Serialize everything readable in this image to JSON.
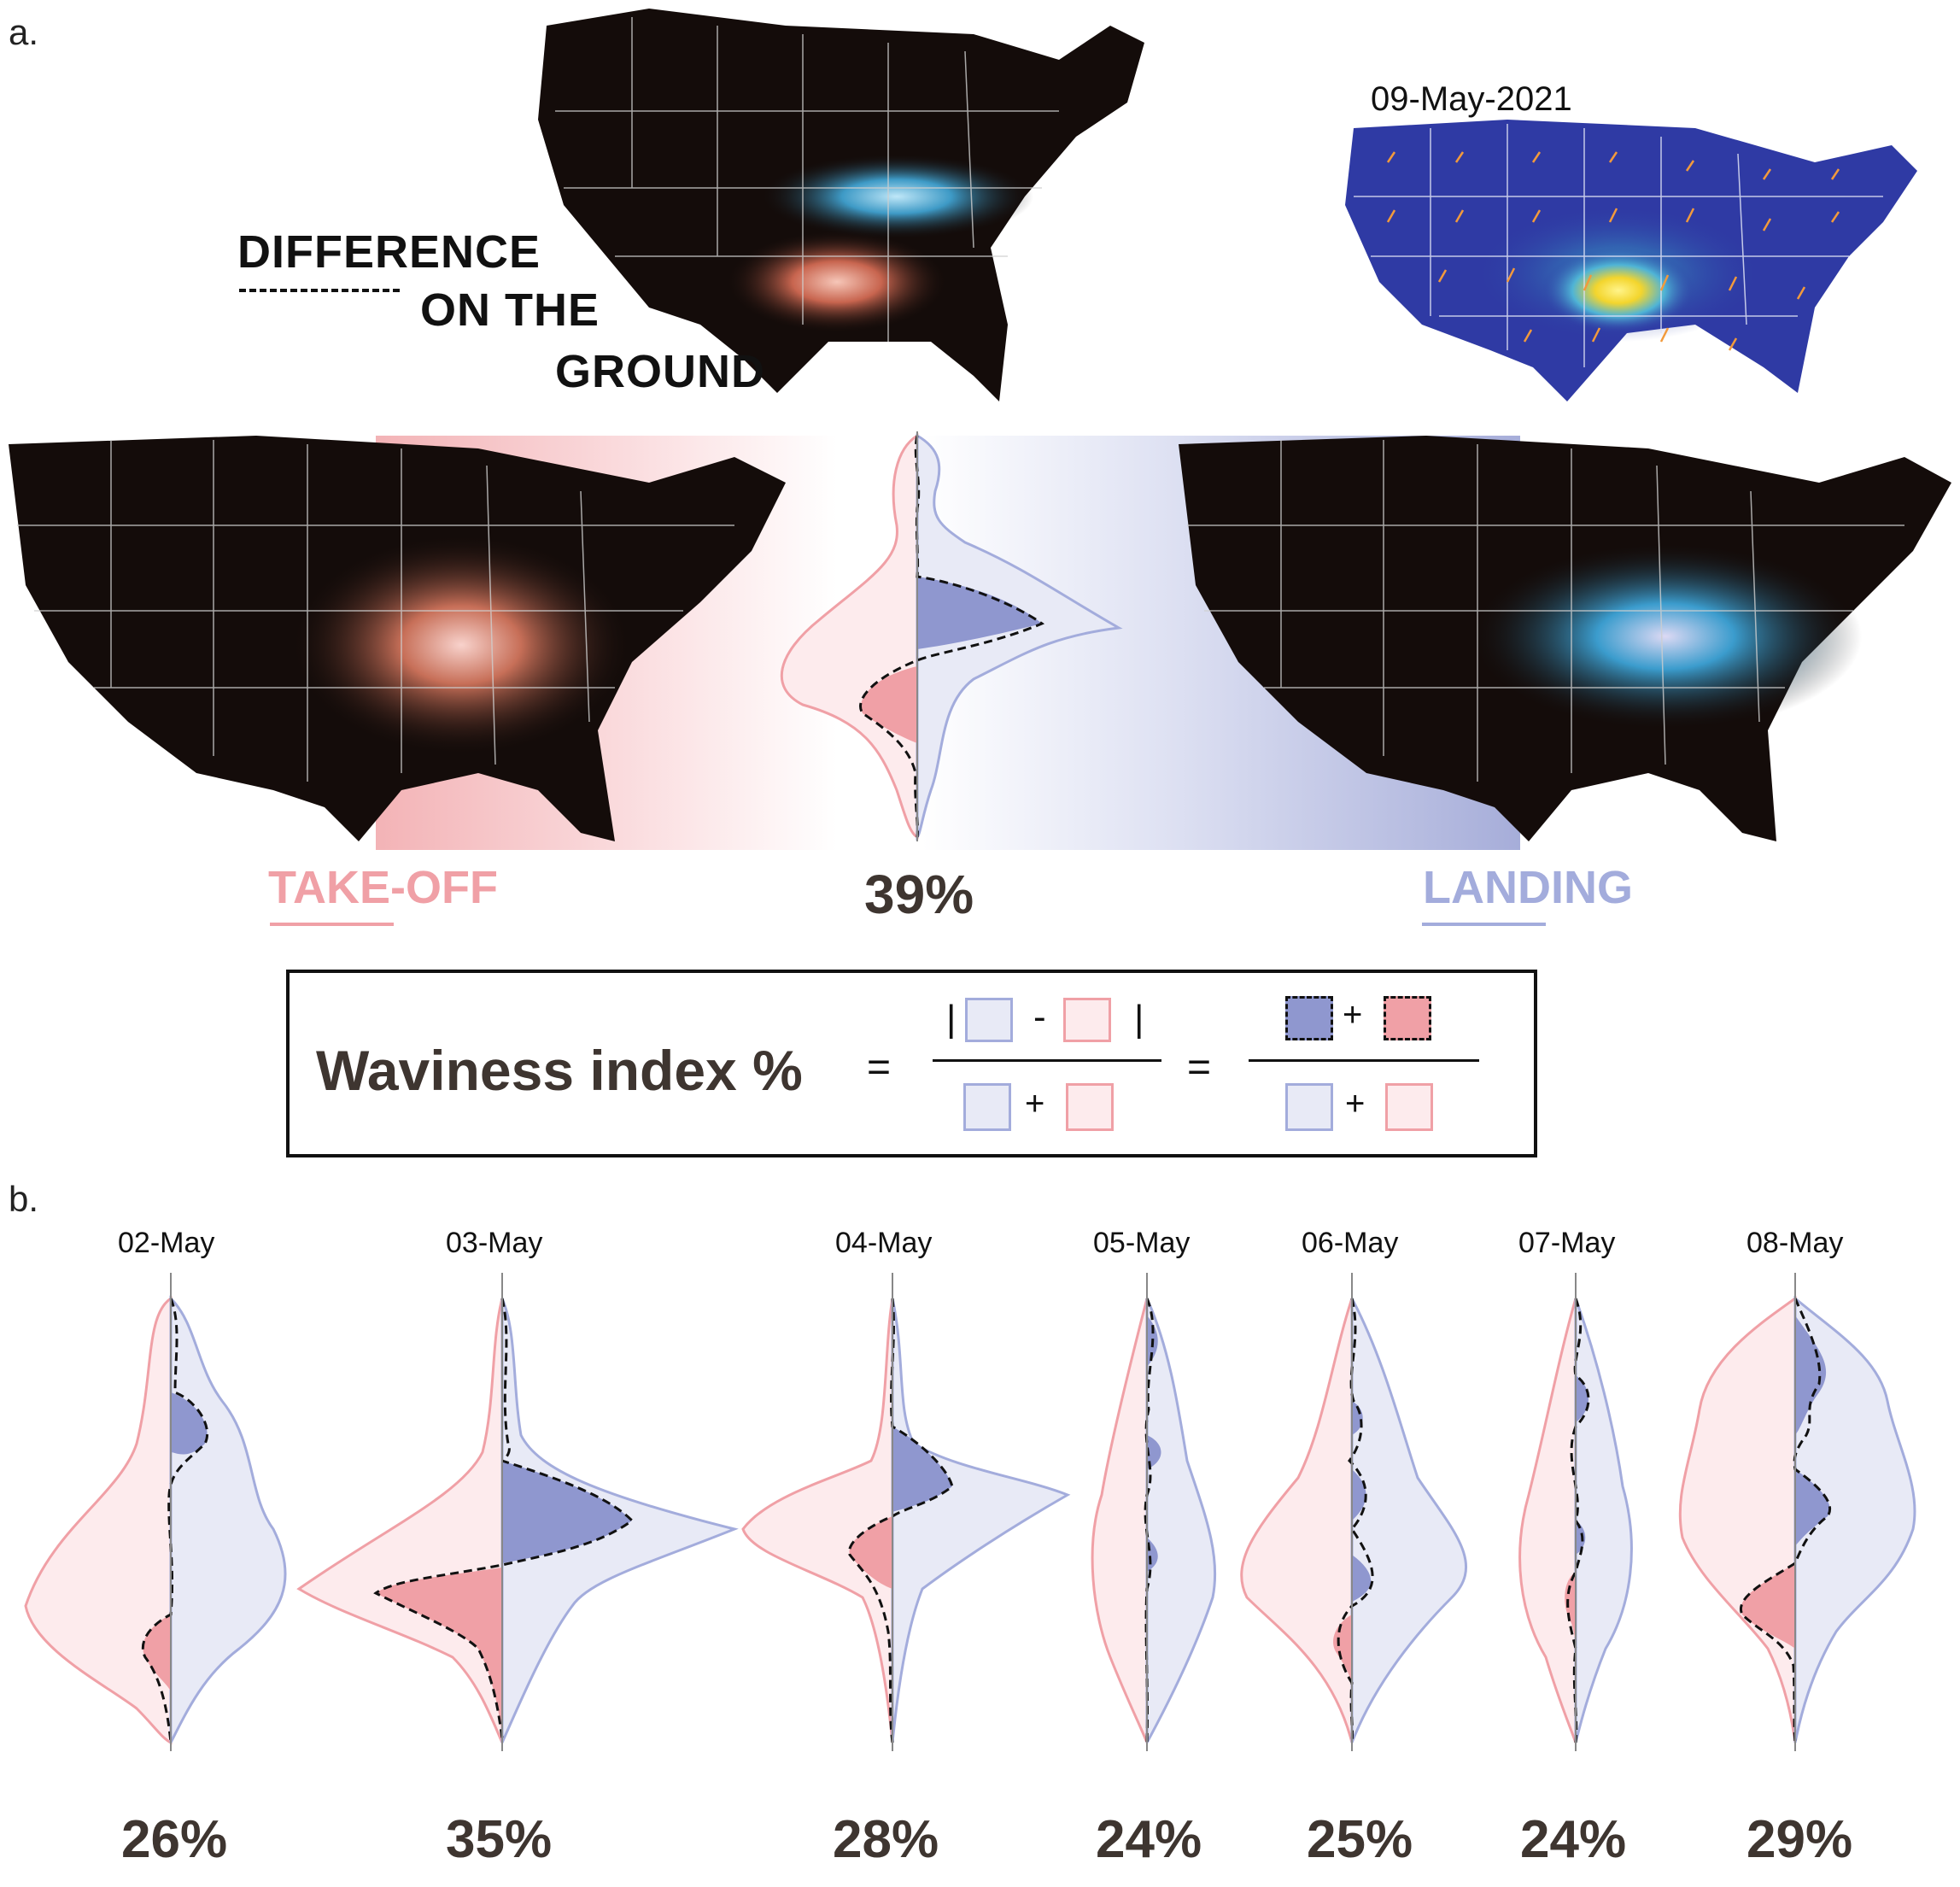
{
  "panel_a": {
    "label": "a.",
    "difference_title": [
      "DIFFERENCE",
      "ON THE",
      "GROUND"
    ],
    "inset_date": "09-May-2021",
    "takeoff_label": "TAKE-OFF",
    "landing_label": "LANDING",
    "main_percent": "39%",
    "formula": {
      "lhs": "Waviness index %",
      "equals": "=",
      "abs_open": "|",
      "abs_close": "|",
      "minus": "-",
      "plus": "+"
    },
    "colors": {
      "takeoff": "#f0a0a6",
      "takeoff_fill": "#fdebed",
      "landing": "#a3acdc",
      "landing_fill": "#e8eaf6",
      "landing_dark": "#8f97cf",
      "takeoff_dark": "#f0a0a6",
      "map_bg": "#140c0a",
      "text_dark": "#3e3530"
    }
  },
  "panel_b": {
    "label": "b.",
    "days": [
      {
        "date": "02-May",
        "percent": "26%"
      },
      {
        "date": "03-May",
        "percent": "35%"
      },
      {
        "date": "04-May",
        "percent": "28%"
      },
      {
        "date": "05-May",
        "percent": "24%"
      },
      {
        "date": "06-May",
        "percent": "25%"
      },
      {
        "date": "07-May",
        "percent": "24%"
      },
      {
        "date": "08-May",
        "percent": "29%"
      }
    ]
  }
}
